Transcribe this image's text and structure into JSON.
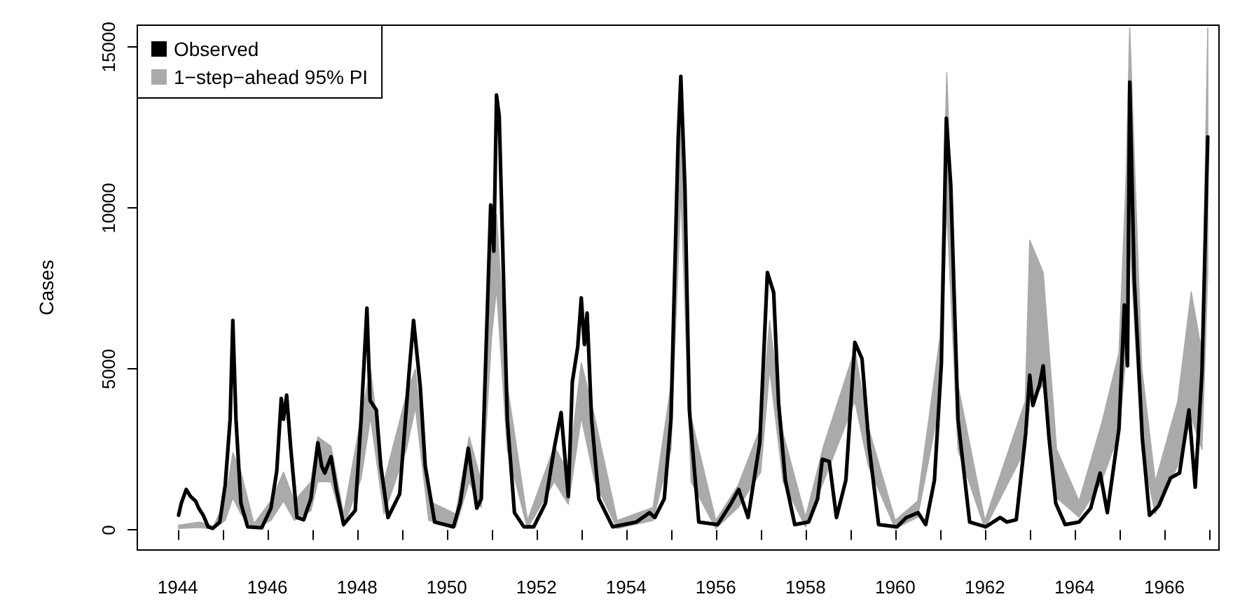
{
  "chart_data": {
    "type": "line",
    "ylabel": "Cases",
    "xlim": [
      1943.1,
      1967.22
    ],
    "ylim": [
      -620,
      15680
    ],
    "xticks": [
      1944,
      {
        "value": 1945,
        "label": null
      },
      1946,
      {
        "value": 1947,
        "label": null
      },
      1948,
      {
        "value": 1949,
        "label": null
      },
      1950,
      {
        "value": 1951,
        "label": null
      },
      1952,
      {
        "value": 1953,
        "label": null
      },
      1954,
      {
        "value": 1955,
        "label": null
      },
      1956,
      {
        "value": 1957,
        "label": null
      },
      1958,
      {
        "value": 1959,
        "label": null
      },
      1960,
      {
        "value": 1961,
        "label": null
      },
      1962,
      {
        "value": 1963,
        "label": null
      },
      1964,
      {
        "value": 1965,
        "label": null
      },
      1966,
      {
        "value": 1967,
        "label": null
      }
    ],
    "yticks": [
      0,
      5000,
      10000,
      15000
    ],
    "grid": false,
    "legend": "top left",
    "marker": "none",
    "line_style": "solid",
    "series": [
      {
        "name": "1−step−ahead 95% PI",
        "type": "area",
        "color": "#aaaaaa",
        "x": [
          1944.02,
          1944.5,
          1944.8,
          1945.06,
          1945.23,
          1945.41,
          1945.7,
          1946.08,
          1946.36,
          1946.6,
          1946.97,
          1947.125,
          1947.42,
          1947.7,
          1948.09,
          1948.3,
          1948.6,
          1949.1,
          1949.3,
          1949.6,
          1950.2,
          1950.5,
          1950.77,
          1951.0,
          1951.11,
          1951.35,
          1951.8,
          1952.4,
          1952.71,
          1953.0,
          1953.3,
          1953.8,
          1954.6,
          1955.0,
          1955.22,
          1955.45,
          1956.0,
          1956.5,
          1957.0,
          1957.2,
          1957.5,
          1958.0,
          1958.4,
          1959.1,
          1959.4,
          1960.0,
          1960.5,
          1961.0,
          1961.15,
          1961.4,
          1962.0,
          1962.9,
          1963.0,
          1963.3,
          1963.6,
          1964.1,
          1964.6,
          1964.99,
          1965.15,
          1965.23,
          1965.5,
          1965.8,
          1966.3,
          1966.6,
          1966.84,
          1966.97
        ],
        "values": [
          null,
          null,
          null,
          null,
          null,
          null,
          null,
          null,
          null,
          null,
          null,
          null,
          null,
          null,
          null,
          null,
          null,
          null,
          null,
          null,
          null,
          null,
          null,
          null,
          null,
          null,
          null,
          null,
          null,
          null,
          null,
          null,
          null,
          null,
          null,
          null,
          null,
          null,
          null,
          null,
          null,
          null,
          null,
          null,
          null,
          null,
          null,
          null,
          null,
          null,
          null,
          null,
          null,
          null,
          null,
          null,
          null,
          null,
          null,
          null,
          null,
          null,
          null,
          null,
          null,
          null
        ],
        "lower": [
          50,
          80,
          30,
          300,
          1000,
          500,
          50,
          300,
          900,
          300,
          600,
          1500,
          1500,
          100,
          1600,
          3500,
          500,
          2500,
          3800,
          300,
          100,
          1500,
          700,
          6000,
          7500,
          2500,
          50,
          1500,
          800,
          3500,
          1500,
          50,
          300,
          2500,
          10500,
          1500,
          50,
          700,
          1800,
          5000,
          1500,
          100,
          1500,
          4000,
          2000,
          50,
          400,
          4000,
          10000,
          2500,
          50,
          2500,
          4000,
          4500,
          1000,
          400,
          1500,
          3000,
          5500,
          9000,
          2500,
          500,
          2000,
          3500,
          2500,
          8000
        ],
        "upper": [
          150,
          250,
          120,
          900,
          2400,
          1800,
          200,
          900,
          1800,
          900,
          1500,
          2900,
          2600,
          500,
          3500,
          5000,
          1500,
          4200,
          5000,
          900,
          500,
          2900,
          1500,
          8800,
          9800,
          4500,
          300,
          2600,
          1800,
          5200,
          3500,
          300,
          700,
          4500,
          14000,
          3500,
          300,
          1400,
          3200,
          6500,
          3000,
          400,
          2600,
          5600,
          3200,
          300,
          900,
          6000,
          14200,
          4500,
          300,
          4000,
          9000,
          8000,
          2500,
          900,
          3300,
          5500,
          11000,
          15600,
          5000,
          1500,
          4000,
          7400,
          5500,
          15600
        ]
      },
      {
        "name": "Observed",
        "color": "#000000",
        "x": [
          1944.02,
          1944.08,
          1944.19,
          1944.29,
          1944.4,
          1944.47,
          1944.57,
          1944.68,
          1944.78,
          1944.94,
          1945.06,
          1945.17,
          1945.23,
          1945.3,
          1945.41,
          1945.56,
          1945.875,
          1946.08,
          1946.21,
          1946.31,
          1946.36,
          1946.43,
          1946.52,
          1946.66,
          1946.81,
          1946.97,
          1947.125,
          1947.21,
          1947.28,
          1947.42,
          1947.54,
          1947.7,
          1947.96,
          1948.09,
          1948.22,
          1948.29,
          1948.43,
          1948.53,
          1948.69,
          1948.95,
          1949.16,
          1949.26,
          1949.41,
          1949.52,
          1949.73,
          1950.15,
          1950.3,
          1950.48,
          1950.67,
          1950.77,
          1950.98,
          1951.05,
          1951.11,
          1951.17,
          1951.35,
          1951.51,
          1951.72,
          1951.94,
          1952.2,
          1952.4,
          1952.55,
          1952.71,
          1952.8,
          1952.92,
          1953.0,
          1953.07,
          1953.13,
          1953.23,
          1953.39,
          1953.7,
          1954.23,
          1954.52,
          1954.64,
          1954.85,
          1955.0,
          1955.16,
          1955.22,
          1955.31,
          1955.41,
          1955.62,
          1956.04,
          1956.34,
          1956.51,
          1956.72,
          1956.98,
          1957.15,
          1957.29,
          1957.4,
          1957.55,
          1957.76,
          1958.07,
          1958.27,
          1958.375,
          1958.53,
          1958.69,
          1958.9,
          1959.1,
          1959.26,
          1959.42,
          1959.63,
          1960.04,
          1960.25,
          1960.51,
          1960.68,
          1960.875,
          1961.03,
          1961.14,
          1961.24,
          1961.4,
          1961.66,
          1962.02,
          1962.34,
          1962.49,
          1962.7,
          1962.91,
          1963.0,
          1963.07,
          1963.22,
          1963.3,
          1963.43,
          1963.58,
          1963.79,
          1964.1,
          1964.36,
          1964.57,
          1964.73,
          1964.99,
          1965.11,
          1965.18,
          1965.23,
          1965.33,
          1965.51,
          1965.67,
          1965.875,
          1966.14,
          1966.34,
          1966.55,
          1966.69,
          1966.84,
          1966.97
        ],
        "values": [
          460,
          830,
          1260,
          1040,
          900,
          680,
          460,
          100,
          50,
          250,
          1400,
          3440,
          6510,
          3440,
          830,
          100,
          70,
          680,
          1840,
          4090,
          3440,
          4190,
          2570,
          390,
          320,
          970,
          2710,
          1990,
          1770,
          2280,
          1260,
          170,
          610,
          3440,
          6890,
          4020,
          3730,
          1990,
          390,
          1120,
          4890,
          6510,
          4450,
          1990,
          250,
          100,
          830,
          2540,
          680,
          970,
          10100,
          8660,
          13510,
          12860,
          3440,
          540,
          100,
          100,
          830,
          2570,
          3650,
          1040,
          4600,
          5680,
          7210,
          5760,
          6740,
          3440,
          970,
          100,
          250,
          540,
          390,
          970,
          3440,
          12140,
          14090,
          10690,
          3730,
          250,
          170,
          830,
          1260,
          390,
          2710,
          8000,
          7380,
          3940,
          1550,
          170,
          250,
          970,
          2200,
          2130,
          390,
          1550,
          5830,
          5320,
          2570,
          170,
          100,
          390,
          540,
          170,
          1550,
          5180,
          12790,
          10690,
          3440,
          250,
          100,
          390,
          250,
          320,
          3000,
          4810,
          3870,
          4520,
          5100,
          2860,
          830,
          170,
          250,
          680,
          1770,
          540,
          3150,
          6990,
          5100,
          13910,
          7790,
          2860,
          460,
          750,
          1620,
          1770,
          3730,
          1330,
          4890,
          12210
        ]
      }
    ]
  }
}
